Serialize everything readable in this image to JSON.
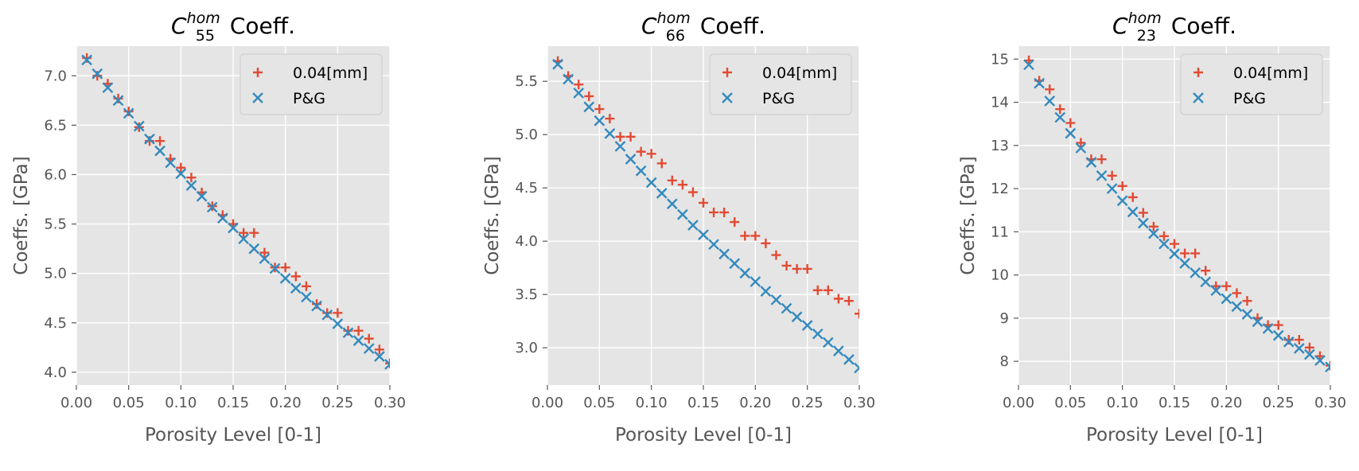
{
  "colors": {
    "axes_bg": "#e5e5e5",
    "grid": "#ffffff",
    "tick": "#555555",
    "series_fem": "#e24a33",
    "series_pg": "#348abd",
    "legend_bg": "#e5e5e5",
    "legend_border": "#cccccc"
  },
  "chart_data": [
    {
      "type": "scatter",
      "title": {
        "symbol": "C",
        "sup": "hom",
        "sub": "55",
        "suffix": " Coeff."
      },
      "xlabel": "Porosity Level [0-1]",
      "ylabel": "Coeffs. [GPa]",
      "xlim": [
        0.0,
        0.3
      ],
      "ylim": [
        3.87,
        7.3
      ],
      "xticks": [
        0.0,
        0.05,
        0.1,
        0.15,
        0.2,
        0.25,
        0.3
      ],
      "xtick_labels": [
        "0.00",
        "0.05",
        "0.10",
        "0.15",
        "0.20",
        "0.25",
        "0.30"
      ],
      "yticks": [
        4.0,
        4.5,
        5.0,
        5.5,
        6.0,
        6.5,
        7.0
      ],
      "ytick_labels": [
        "4.0",
        "4.5",
        "5.0",
        "5.5",
        "6.0",
        "6.5",
        "7.0"
      ],
      "grid": true,
      "legend_position": "top-right",
      "x": [
        0.01,
        0.02,
        0.03,
        0.04,
        0.05,
        0.06,
        0.07,
        0.08,
        0.09,
        0.1,
        0.11,
        0.12,
        0.13,
        0.14,
        0.15,
        0.16,
        0.17,
        0.18,
        0.19,
        0.2,
        0.21,
        0.22,
        0.23,
        0.24,
        0.25,
        0.26,
        0.27,
        0.28,
        0.29,
        0.3
      ],
      "series": [
        {
          "name": "0.04[mm]",
          "marker": "plus",
          "color": "#e24a33",
          "values": [
            7.18,
            7.0,
            6.92,
            6.77,
            6.64,
            6.48,
            6.34,
            6.34,
            6.16,
            6.07,
            5.97,
            5.82,
            5.68,
            5.59,
            5.5,
            5.41,
            5.41,
            5.21,
            5.06,
            5.06,
            4.97,
            4.87,
            4.69,
            4.6,
            4.6,
            4.42,
            4.42,
            4.34,
            4.23,
            4.09
          ]
        },
        {
          "name": "P&G",
          "marker": "x",
          "color": "#348abd",
          "values": [
            7.16,
            7.02,
            6.88,
            6.75,
            6.62,
            6.49,
            6.36,
            6.24,
            6.12,
            6.01,
            5.89,
            5.78,
            5.67,
            5.56,
            5.46,
            5.35,
            5.25,
            5.15,
            5.05,
            4.95,
            4.85,
            4.76,
            4.67,
            4.58,
            4.49,
            4.4,
            4.32,
            4.24,
            4.16,
            4.08
          ]
        }
      ]
    },
    {
      "type": "scatter",
      "title": {
        "symbol": "C",
        "sup": "hom",
        "sub": "66",
        "suffix": " Coeff."
      },
      "xlabel": "Porosity Level [0-1]",
      "ylabel": "Coeffs. [GPa]",
      "xlim": [
        0.0,
        0.3
      ],
      "ylim": [
        2.65,
        5.83
      ],
      "xticks": [
        0.0,
        0.05,
        0.1,
        0.15,
        0.2,
        0.25,
        0.3
      ],
      "xtick_labels": [
        "0.00",
        "0.05",
        "0.10",
        "0.15",
        "0.20",
        "0.25",
        "0.30"
      ],
      "yticks": [
        3.0,
        3.5,
        4.0,
        4.5,
        5.0,
        5.5
      ],
      "ytick_labels": [
        "3.0",
        "3.5",
        "4.0",
        "4.5",
        "5.0",
        "5.5"
      ],
      "grid": true,
      "legend_position": "top-right",
      "x": [
        0.01,
        0.02,
        0.03,
        0.04,
        0.05,
        0.06,
        0.07,
        0.08,
        0.09,
        0.1,
        0.11,
        0.12,
        0.13,
        0.14,
        0.15,
        0.16,
        0.17,
        0.18,
        0.19,
        0.2,
        0.21,
        0.22,
        0.23,
        0.24,
        0.25,
        0.26,
        0.27,
        0.28,
        0.29,
        0.3
      ],
      "series": [
        {
          "name": "0.04[mm]",
          "marker": "plus",
          "color": "#e24a33",
          "values": [
            5.69,
            5.55,
            5.47,
            5.36,
            5.24,
            5.15,
            4.98,
            4.98,
            4.84,
            4.82,
            4.73,
            4.57,
            4.53,
            4.46,
            4.36,
            4.27,
            4.27,
            4.18,
            4.05,
            4.05,
            3.98,
            3.87,
            3.77,
            3.74,
            3.74,
            3.54,
            3.54,
            3.46,
            3.44,
            3.32
          ]
        },
        {
          "name": "P&G",
          "marker": "x",
          "color": "#348abd",
          "values": [
            5.66,
            5.52,
            5.39,
            5.26,
            5.13,
            5.01,
            4.89,
            4.77,
            4.66,
            4.55,
            4.45,
            4.35,
            4.25,
            4.15,
            4.06,
            3.97,
            3.88,
            3.79,
            3.7,
            3.62,
            3.53,
            3.45,
            3.37,
            3.29,
            3.21,
            3.13,
            3.05,
            2.97,
            2.89,
            2.81
          ]
        }
      ]
    },
    {
      "type": "scatter",
      "title": {
        "symbol": "C",
        "sup": "hom",
        "sub": "23",
        "suffix": " Coeff."
      },
      "xlabel": "Porosity Level [0-1]",
      "ylabel": "Coeffs. [GPa]",
      "xlim": [
        0.0,
        0.3
      ],
      "ylim": [
        7.45,
        15.3
      ],
      "xticks": [
        0.0,
        0.05,
        0.1,
        0.15,
        0.2,
        0.25,
        0.3
      ],
      "xtick_labels": [
        "0.00",
        "0.05",
        "0.10",
        "0.15",
        "0.20",
        "0.25",
        "0.30"
      ],
      "yticks": [
        8,
        9,
        10,
        11,
        12,
        13,
        14,
        15
      ],
      "ytick_labels": [
        "8",
        "9",
        "10",
        "11",
        "12",
        "13",
        "14",
        "15"
      ],
      "grid": true,
      "legend_position": "top-right",
      "x": [
        0.01,
        0.02,
        0.03,
        0.04,
        0.05,
        0.06,
        0.07,
        0.08,
        0.09,
        0.1,
        0.11,
        0.12,
        0.13,
        0.14,
        0.15,
        0.16,
        0.17,
        0.18,
        0.19,
        0.2,
        0.21,
        0.22,
        0.23,
        0.24,
        0.25,
        0.26,
        0.27,
        0.28,
        0.29,
        0.3
      ],
      "series": [
        {
          "name": "0.04[mm]",
          "marker": "plus",
          "color": "#e24a33",
          "values": [
            14.97,
            14.5,
            14.3,
            13.84,
            13.52,
            13.06,
            12.68,
            12.68,
            12.3,
            12.06,
            11.8,
            11.44,
            11.12,
            10.9,
            10.72,
            10.5,
            10.5,
            10.1,
            9.74,
            9.74,
            9.58,
            9.4,
            9.0,
            8.84,
            8.84,
            8.5,
            8.5,
            8.32,
            8.12,
            7.9
          ]
        },
        {
          "name": "P&G",
          "marker": "x",
          "color": "#348abd",
          "values": [
            14.87,
            14.44,
            14.03,
            13.65,
            13.28,
            12.94,
            12.61,
            12.3,
            12.0,
            11.72,
            11.46,
            11.2,
            10.96,
            10.72,
            10.49,
            10.27,
            10.05,
            9.84,
            9.64,
            9.45,
            9.27,
            9.09,
            8.92,
            8.76,
            8.6,
            8.45,
            8.3,
            8.16,
            8.02,
            7.87
          ]
        }
      ]
    }
  ]
}
